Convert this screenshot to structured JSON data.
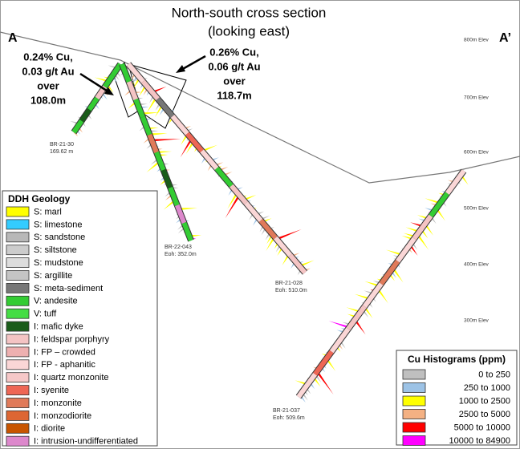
{
  "title": {
    "line1": "North-south cross section",
    "line2": "(looking east)"
  },
  "section_ends": {
    "start": "A",
    "end": "A’"
  },
  "elevations": [
    "800m Elev",
    "700m Elev",
    "600m Elev",
    "500m Elev",
    "400m Elev",
    "300m Elev"
  ],
  "annotations": [
    {
      "lines": [
        "0.24% Cu,",
        "0.03 g/t Au",
        "over",
        "108.0m"
      ]
    },
    {
      "lines": [
        "0.26% Cu,",
        "0.06 g/t Au",
        "over",
        "118.7m"
      ]
    }
  ],
  "drillholes": [
    {
      "id": "BR-21-30",
      "length": "169.62 m"
    },
    {
      "id": "BR-22-043",
      "length": "Eoh: 352.0m"
    },
    {
      "id": "BR-21-028",
      "length": "Eoh: 510.0m"
    },
    {
      "id": "BR-21-037",
      "length": "Eoh: 509.6m"
    }
  ],
  "geology_legend": {
    "title": "DDH Geology",
    "items": [
      {
        "label": "S: marl",
        "color": "#ffff00"
      },
      {
        "label": "S: limestone",
        "color": "#33ccff"
      },
      {
        "label": "S: sandstone",
        "color": "#b8b8b8"
      },
      {
        "label": "S: siltstone",
        "color": "#cccccc"
      },
      {
        "label": "S: mudstone",
        "color": "#dddddd"
      },
      {
        "label": "S: argillite",
        "color": "#c4c4c4"
      },
      {
        "label": "S: meta-sediment",
        "color": "#777777"
      },
      {
        "label": "V: andesite",
        "color": "#33cc33"
      },
      {
        "label": "V: tuff",
        "color": "#44dd44"
      },
      {
        "label": "I: mafic dyke",
        "color": "#1a5c1a"
      },
      {
        "label": "I: feldspar porphyry",
        "color": "#f4c4c4"
      },
      {
        "label": "I: FP – crowded",
        "color": "#eeb0b0"
      },
      {
        "label": "I: FP - aphanitic",
        "color": "#fad6d6"
      },
      {
        "label": "I: quartz monzonite",
        "color": "#f6c8c8"
      },
      {
        "label": "I: syenite",
        "color": "#ee6655"
      },
      {
        "label": "I: monzonite",
        "color": "#e07a5a"
      },
      {
        "label": "I: monzodiorite",
        "color": "#dd6633"
      },
      {
        "label": "I: diorite",
        "color": "#c85500"
      },
      {
        "label": "I: intrusion-undifferentiated",
        "color": "#dd88cc"
      }
    ]
  },
  "cu_legend": {
    "title": "Cu Histograms (ppm)",
    "items": [
      {
        "label": "0 to 250",
        "color": "#bfbfbf"
      },
      {
        "label": "250 to 1000",
        "color": "#9dc3e6"
      },
      {
        "label": "1000 to 2500",
        "color": "#ffff00"
      },
      {
        "label": "2500 to 5000",
        "color": "#f4b183"
      },
      {
        "label": "5000 to 10000",
        "color": "#ff0000"
      },
      {
        "label": "10000 to 84900",
        "color": "#ff00ff"
      }
    ]
  }
}
